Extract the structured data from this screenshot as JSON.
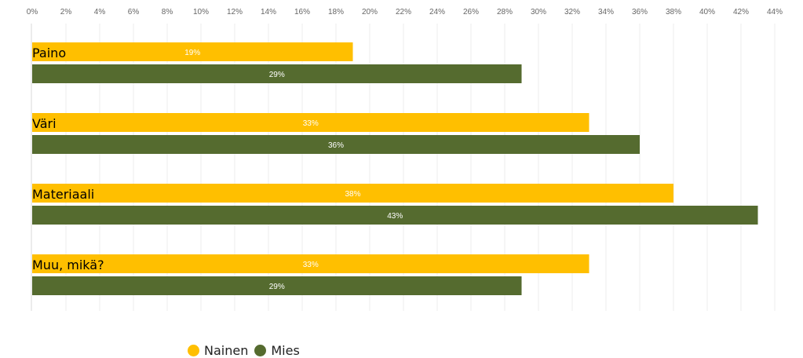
{
  "chart_data": {
    "type": "bar",
    "orientation": "horizontal",
    "categories": [
      "Paino",
      "Väri",
      "Materiaali",
      "Muu, mikä?"
    ],
    "series": [
      {
        "name": "Nainen",
        "color": "#FFBF00",
        "values": [
          19,
          33,
          38,
          33
        ]
      },
      {
        "name": "Mies",
        "color": "#556B2F",
        "values": [
          29,
          36,
          43,
          29
        ]
      }
    ],
    "x_ticks": [
      "0%",
      "2%",
      "4%",
      "6%",
      "8%",
      "10%",
      "12%",
      "14%",
      "16%",
      "18%",
      "20%",
      "22%",
      "24%",
      "26%",
      "28%",
      "30%",
      "32%",
      "34%",
      "36%",
      "38%",
      "40%",
      "42%",
      "44%"
    ],
    "xlim": [
      0,
      44
    ],
    "value_suffix": "%",
    "grid": true,
    "legend_position": "bottom"
  },
  "legend": {
    "items": [
      {
        "label": "Nainen",
        "color": "#FFBF00"
      },
      {
        "label": "Mies",
        "color": "#556B2F"
      }
    ]
  }
}
